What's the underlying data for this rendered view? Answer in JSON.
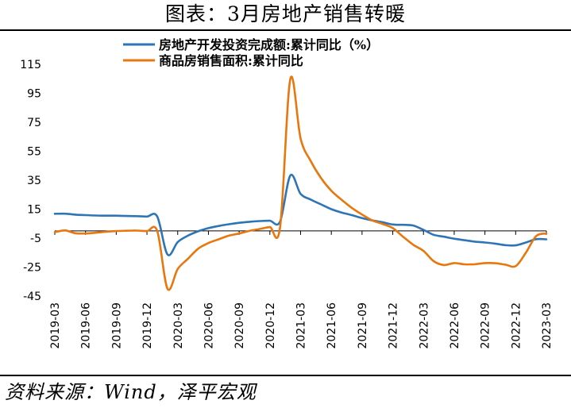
{
  "title": "图表：3月房地产销售转暖",
  "source": "资料来源：Wind，泽平宏观",
  "chart_data": {
    "type": "line",
    "xlabel": "",
    "ylabel": "",
    "ylim": [
      -45,
      115
    ],
    "yticks": [
      115,
      95,
      75,
      55,
      35,
      15,
      -5,
      -25,
      -45
    ],
    "xticks": [
      "2019-03",
      "2019-06",
      "2019-09",
      "2019-12",
      "2020-03",
      "2020-06",
      "2020-09",
      "2020-12",
      "2021-03",
      "2021-06",
      "2021-09",
      "2021-12",
      "2022-03",
      "2022-06",
      "2022-09",
      "2022-12",
      "2023-03"
    ],
    "grid": false,
    "legend_position": "top",
    "series": [
      {
        "name": "房地产开发投资完成额:累计同比（%）",
        "color": "#2E75B6",
        "points": [
          [
            "2019-03",
            11.8
          ],
          [
            "2019-04",
            11.9
          ],
          [
            "2019-05",
            11.2
          ],
          [
            "2019-06",
            10.9
          ],
          [
            "2019-07",
            10.6
          ],
          [
            "2019-08",
            10.5
          ],
          [
            "2019-09",
            10.5
          ],
          [
            "2019-10",
            10.3
          ],
          [
            "2019-11",
            10.2
          ],
          [
            "2019-12",
            9.9
          ],
          [
            "2020-01",
            9.9
          ],
          [
            "2020-02",
            -16.3
          ],
          [
            "2020-03",
            -7.7
          ],
          [
            "2020-04",
            -3.3
          ],
          [
            "2020-05",
            -0.3
          ],
          [
            "2020-06",
            1.9
          ],
          [
            "2020-07",
            3.4
          ],
          [
            "2020-08",
            4.6
          ],
          [
            "2020-09",
            5.6
          ],
          [
            "2020-10",
            6.3
          ],
          [
            "2020-11",
            6.8
          ],
          [
            "2020-12",
            7.0
          ],
          [
            "2021-01",
            6.5
          ],
          [
            "2021-02",
            38.3
          ],
          [
            "2021-03",
            25.6
          ],
          [
            "2021-04",
            21.6
          ],
          [
            "2021-05",
            18.3
          ],
          [
            "2021-06",
            15.0
          ],
          [
            "2021-07",
            12.7
          ],
          [
            "2021-08",
            10.9
          ],
          [
            "2021-09",
            8.8
          ],
          [
            "2021-10",
            7.2
          ],
          [
            "2021-11",
            6.0
          ],
          [
            "2021-12",
            4.4
          ],
          [
            "2022-01",
            4.2
          ],
          [
            "2022-02",
            3.7
          ],
          [
            "2022-03",
            0.7
          ],
          [
            "2022-04",
            -2.7
          ],
          [
            "2022-05",
            -4.0
          ],
          [
            "2022-06",
            -5.4
          ],
          [
            "2022-07",
            -6.4
          ],
          [
            "2022-08",
            -7.4
          ],
          [
            "2022-09",
            -8.0
          ],
          [
            "2022-10",
            -8.8
          ],
          [
            "2022-11",
            -9.8
          ],
          [
            "2022-12",
            -10.0
          ],
          [
            "2023-01",
            -8.0
          ],
          [
            "2023-02",
            -5.7
          ],
          [
            "2023-03",
            -5.8
          ]
        ]
      },
      {
        "name": "商品房销售面积:累计同比",
        "color": "#E8770E",
        "points": [
          [
            "2019-03",
            -0.9
          ],
          [
            "2019-04",
            0.3
          ],
          [
            "2019-05",
            -1.6
          ],
          [
            "2019-06",
            -1.8
          ],
          [
            "2019-07",
            -1.3
          ],
          [
            "2019-08",
            -0.6
          ],
          [
            "2019-09",
            -0.1
          ],
          [
            "2019-10",
            0.1
          ],
          [
            "2019-11",
            0.2
          ],
          [
            "2019-12",
            -0.1
          ],
          [
            "2020-01",
            -0.1
          ],
          [
            "2020-02",
            -39.9
          ],
          [
            "2020-03",
            -26.3
          ],
          [
            "2020-04",
            -19.3
          ],
          [
            "2020-05",
            -12.3
          ],
          [
            "2020-06",
            -8.4
          ],
          [
            "2020-07",
            -5.8
          ],
          [
            "2020-08",
            -3.3
          ],
          [
            "2020-09",
            -1.8
          ],
          [
            "2020-10",
            0.0
          ],
          [
            "2020-11",
            1.3
          ],
          [
            "2020-12",
            2.6
          ],
          [
            "2021-01",
            2.6
          ],
          [
            "2021-02",
            104.9
          ],
          [
            "2021-03",
            63.8
          ],
          [
            "2021-04",
            48.1
          ],
          [
            "2021-05",
            36.4
          ],
          [
            "2021-06",
            27.7
          ],
          [
            "2021-07",
            21.5
          ],
          [
            "2021-08",
            15.9
          ],
          [
            "2021-09",
            11.3
          ],
          [
            "2021-10",
            7.2
          ],
          [
            "2021-11",
            4.8
          ],
          [
            "2021-12",
            1.9
          ],
          [
            "2022-01",
            -4.0
          ],
          [
            "2022-02",
            -9.6
          ],
          [
            "2022-03",
            -13.8
          ],
          [
            "2022-04",
            -20.9
          ],
          [
            "2022-05",
            -23.6
          ],
          [
            "2022-06",
            -22.2
          ],
          [
            "2022-07",
            -23.1
          ],
          [
            "2022-08",
            -23.0
          ],
          [
            "2022-09",
            -22.2
          ],
          [
            "2022-10",
            -22.3
          ],
          [
            "2022-11",
            -23.3
          ],
          [
            "2022-12",
            -24.3
          ],
          [
            "2023-01",
            -15.0
          ],
          [
            "2023-02",
            -3.6
          ],
          [
            "2023-03",
            -1.8
          ]
        ]
      }
    ]
  }
}
